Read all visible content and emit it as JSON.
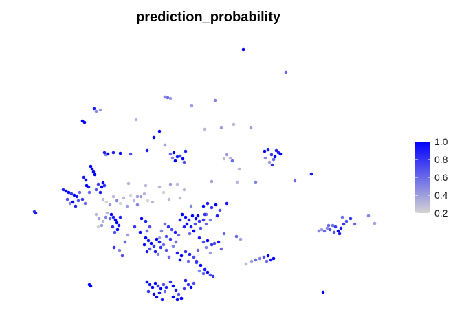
{
  "chart_data": {
    "type": "scatter",
    "title": "prediction_probability",
    "xlabel": "",
    "ylabel": "",
    "axes_visible": false,
    "grid": false,
    "legend_position": "right",
    "color_scale": {
      "low": "#d3d3d3",
      "high": "#0000ff",
      "limits": [
        0.2,
        1.0
      ],
      "breaks": [
        0.2,
        0.4,
        0.6,
        0.8,
        1.0
      ],
      "break_labels": [
        "0.2",
        "0.4",
        "0.6",
        "0.8",
        "1.0"
      ]
    },
    "clusters": [
      {
        "x": [
          50,
          52
        ],
        "y": [
          308,
          310
        ],
        "v": [
          0.8,
          0.9
        ]
      },
      {
        "x": [
          354
        ],
        "y": [
          72
        ],
        "v": [
          1.0
        ]
      },
      {
        "x": [
          416
        ],
        "y": [
          105
        ],
        "v": [
          0.6
        ]
      },
      {
        "x": [
          240,
          244,
          248
        ],
        "y": [
          141,
          142,
          143
        ],
        "v": [
          0.5,
          0.6,
          0.4
        ]
      },
      {
        "x": [
          137,
          140,
          146,
          120,
          123
        ],
        "y": [
          158,
          162,
          160,
          176,
          178
        ],
        "v": [
          0.9,
          0.5,
          0.4,
          1.0,
          1.0
        ]
      },
      {
        "x": [
          279,
          313,
          198,
          298,
          322,
          340,
          365
        ],
        "y": [
          154,
          146,
          174,
          188,
          186,
          181,
          186
        ],
        "v": [
          0.4,
          0.5,
          0.3,
          0.3,
          0.4,
          0.3,
          0.4
        ]
      },
      {
        "x": [
          232,
          224,
          240,
          214
        ],
        "y": [
          191,
          200,
          211,
          219
        ],
        "v": [
          1.0,
          1.0,
          0.4,
          0.9
        ]
      },
      {
        "x": [
          152,
          154,
          157,
          165,
          175,
          190
        ],
        "y": [
          222,
          225,
          224,
          222,
          223,
          224
        ],
        "v": [
          0.9,
          0.5,
          1.0,
          0.9,
          1.0,
          0.7
        ]
      },
      {
        "x": [
          248,
          253,
          258,
          262,
          266,
          268,
          251,
          255,
          270
        ],
        "y": [
          224,
          222,
          228,
          227,
          231,
          236,
          230,
          234,
          220
        ],
        "v": [
          0.6,
          1.0,
          0.9,
          0.8,
          1.0,
          0.7,
          0.5,
          1.0,
          0.9
        ]
      },
      {
        "x": [
          330,
          335,
          338,
          326,
          348,
          345,
          308
        ],
        "y": [
          225,
          230,
          234,
          231,
          246,
          265,
          264
        ],
        "v": [
          0.4,
          0.3,
          0.6,
          0.3,
          0.3,
          0.3,
          0.4
        ]
      },
      {
        "x": [
          385,
          390,
          395,
          400,
          405,
          408,
          398,
          392,
          386,
          402,
          396
        ],
        "y": [
          220,
          218,
          225,
          228,
          222,
          224,
          232,
          236,
          230,
          219,
          240
        ],
        "v": [
          1.0,
          0.9,
          0.8,
          1.0,
          0.9,
          1.0,
          0.6,
          0.4,
          0.5,
          0.9,
          0.8
        ]
      },
      {
        "x": [
          453,
          429,
          372
        ],
        "y": [
          253,
          263,
          265
        ],
        "v": [
          0.9,
          0.6,
          0.5
        ]
      },
      {
        "x": [
          132,
          134,
          136,
          138,
          126,
          129,
          143,
          148,
          122,
          125,
          140,
          146,
          150,
          152,
          130
        ],
        "y": [
          242,
          246,
          250,
          254,
          270,
          272,
          268,
          272,
          258,
          262,
          276,
          280,
          266,
          270,
          280
        ],
        "v": [
          1.0,
          1.0,
          1.0,
          1.0,
          1.0,
          0.9,
          0.8,
          1.0,
          0.9,
          1.0,
          0.7,
          0.9,
          1.0,
          0.8,
          0.6
        ]
      },
      {
        "x": [
          92,
          96,
          100,
          104,
          108,
          112,
          98,
          106,
          116,
          120,
          102,
          110,
          114,
          124
        ],
        "y": [
          276,
          278,
          280,
          282,
          284,
          286,
          290,
          294,
          280,
          290,
          296,
          300,
          292,
          296
        ],
        "v": [
          0.9,
          1.0,
          1.0,
          0.8,
          1.0,
          0.9,
          0.7,
          1.0,
          0.6,
          0.8,
          0.5,
          0.9,
          0.7,
          0.6
        ]
      },
      {
        "x": [
          150,
          155,
          160,
          165,
          170,
          175,
          180,
          185,
          190,
          195,
          200,
          205,
          210,
          215
        ],
        "y": [
          290,
          294,
          298,
          286,
          292,
          296,
          288,
          300,
          284,
          292,
          298,
          286,
          282,
          292
        ],
        "v": [
          0.3,
          0.2,
          0.4,
          0.3,
          0.5,
          0.2,
          0.3,
          0.4,
          0.2,
          0.3,
          0.5,
          0.4,
          0.3,
          0.2
        ]
      },
      {
        "x": [
          187,
          212,
          232,
          248,
          258,
          262,
          238,
          222,
          200,
          268,
          278,
          246
        ],
        "y": [
          267,
          270,
          272,
          268,
          268,
          288,
          280,
          294,
          286,
          276,
          300,
          290
        ],
        "v": [
          0.3,
          0.3,
          0.3,
          0.4,
          0.3,
          0.3,
          0.2,
          0.3,
          0.4,
          0.3,
          0.5,
          0.3
        ]
      },
      {
        "x": [
          162,
          165,
          168,
          170,
          173,
          164,
          171,
          167,
          160,
          175
        ],
        "y": [
          312,
          316,
          320,
          324,
          328,
          330,
          334,
          338,
          318,
          316
        ],
        "v": [
          1.0,
          0.9,
          1.0,
          1.0,
          0.9,
          0.8,
          1.0,
          0.7,
          0.6,
          0.9
        ]
      },
      {
        "x": [
          140,
          144,
          150,
          154,
          148,
          156,
          143
        ],
        "y": [
          312,
          318,
          322,
          316,
          328,
          310,
          330
        ],
        "v": [
          0.3,
          0.4,
          0.3,
          0.5,
          0.4,
          0.3,
          0.2
        ]
      },
      {
        "x": [
          265,
          270,
          275,
          280,
          285,
          290,
          272,
          278,
          284,
          288,
          296,
          300,
          268,
          282,
          292,
          262,
          276,
          298
        ],
        "y": [
          312,
          316,
          320,
          314,
          318,
          322,
          326,
          330,
          326,
          314,
          320,
          326,
          330,
          336,
          332,
          320,
          340,
          312
        ],
        "v": [
          1.0,
          1.0,
          0.9,
          1.0,
          1.0,
          0.8,
          1.0,
          0.9,
          0.7,
          1.0,
          0.8,
          0.6,
          0.9,
          1.0,
          0.7,
          0.9,
          0.6,
          0.8
        ]
      },
      {
        "x": [
          240,
          245,
          250,
          255,
          260,
          235,
          242,
          248,
          256,
          232,
          252
        ],
        "y": [
          326,
          330,
          334,
          338,
          342,
          336,
          344,
          348,
          352,
          346,
          358
        ],
        "v": [
          0.6,
          0.8,
          0.7,
          0.9,
          0.6,
          0.5,
          0.7,
          0.8,
          0.6,
          0.4,
          0.5
        ]
      },
      {
        "x": [
          212,
          216,
          220,
          224,
          228,
          232,
          218,
          226,
          234,
          210,
          238,
          242,
          214,
          230,
          246
        ],
        "y": [
          346,
          350,
          354,
          358,
          348,
          352,
          362,
          366,
          360,
          356,
          356,
          364,
          366,
          370,
          374
        ],
        "v": [
          1.0,
          0.9,
          1.0,
          0.8,
          1.0,
          0.9,
          0.7,
          0.9,
          0.8,
          1.0,
          0.6,
          0.7,
          0.9,
          0.5,
          0.6
        ]
      },
      {
        "x": [
          206,
          212,
          218,
          196,
          204,
          214
        ],
        "y": [
          318,
          322,
          330,
          330,
          338,
          336
        ],
        "v": [
          1.0,
          0.9,
          0.7,
          0.8,
          1.0,
          0.6
        ]
      },
      {
        "x": [
          296,
          302,
          308,
          314,
          320,
          300,
          316,
          306,
          330,
          326
        ],
        "y": [
          300,
          296,
          302,
          298,
          306,
          312,
          314,
          320,
          296,
          340
        ],
        "v": [
          1.0,
          0.9,
          0.8,
          1.0,
          0.7,
          0.6,
          0.9,
          0.5,
          0.9,
          0.6
        ]
      },
      {
        "x": [
          290,
          296,
          302,
          308,
          288,
          300,
          312,
          318,
          322,
          306
        ],
        "y": [
          346,
          352,
          350,
          356,
          364,
          360,
          354,
          352,
          362,
          368
        ],
        "v": [
          0.9,
          0.7,
          1.0,
          0.8,
          0.6,
          0.5,
          0.7,
          0.9,
          0.6,
          0.4
        ]
      },
      {
        "x": [
          258,
          264,
          270,
          276,
          282,
          262,
          274,
          286
        ],
        "y": [
          368,
          372,
          366,
          370,
          374,
          378,
          380,
          382
        ],
        "v": [
          0.9,
          1.0,
          0.8,
          0.9,
          0.7,
          1.0,
          0.6,
          0.7
        ]
      },
      {
        "x": [
          286,
          292,
          298,
          302,
          306,
          296,
          310,
          290
        ],
        "y": [
          380,
          386,
          392,
          396,
          400,
          398,
          402,
          394
        ],
        "v": [
          0.8,
          1.0,
          0.9,
          1.0,
          0.7,
          0.6,
          0.8,
          0.5
        ]
      },
      {
        "x": [
          344,
          350,
          174,
          178,
          166,
          186,
          182
        ],
        "y": [
          344,
          348,
          364,
          372,
          360,
          342,
          352
        ],
        "v": [
          0.6,
          0.4,
          0.5,
          0.7,
          0.8,
          0.4,
          0.6
        ]
      },
      {
        "x": [
          372,
          378,
          384,
          390,
          394,
          398,
          388,
          366,
          358
        ],
        "y": [
          378,
          376,
          374,
          372,
          378,
          376,
          380,
          380,
          384
        ],
        "v": [
          0.6,
          0.5,
          0.7,
          1.0,
          0.9,
          1.0,
          0.6,
          0.4,
          0.3
        ]
      },
      {
        "x": [
          464,
          468,
          472,
          476,
          480,
          484,
          488,
          492,
          496,
          500,
          486,
          494,
          478,
          504,
          510,
          516,
          536,
          545,
          498
        ],
        "y": [
          336,
          334,
          336,
          332,
          334,
          328,
          330,
          336,
          332,
          326,
          338,
          340,
          328,
          322,
          318,
          326,
          314,
          325,
          316
        ],
        "v": [
          0.5,
          0.4,
          0.6,
          0.5,
          0.7,
          0.6,
          0.8,
          1.0,
          0.9,
          0.8,
          0.7,
          0.9,
          0.6,
          0.7,
          0.8,
          0.6,
          0.5,
          0.4,
          0.6
        ]
      },
      {
        "x": [
          214,
          218,
          222,
          226,
          230,
          234,
          238,
          242,
          216,
          224,
          232,
          240,
          248,
          252,
          256,
          260,
          264,
          268,
          228,
          236
        ],
        "y": [
          410,
          414,
          418,
          412,
          416,
          420,
          414,
          418,
          424,
          428,
          426,
          424,
          410,
          416,
          422,
          428,
          434,
          420,
          432,
          436
        ],
        "v": [
          1.0,
          0.9,
          1.0,
          1.0,
          0.8,
          1.0,
          0.7,
          0.9,
          0.8,
          1.0,
          0.9,
          0.6,
          0.8,
          1.0,
          0.9,
          0.7,
          1.0,
          0.8,
          1.0,
          0.9
        ]
      },
      {
        "x": [
          270,
          274,
          278,
          282,
          252,
          258,
          264
        ],
        "y": [
          408,
          414,
          418,
          412,
          432,
          436,
          434
        ],
        "v": [
          0.9,
          0.8,
          1.0,
          0.7,
          1.0,
          1.0,
          0.9
        ]
      },
      {
        "x": [
          130,
          132,
          470
        ],
        "y": [
          414,
          416,
          425
        ],
        "v": [
          1.0,
          1.0,
          1.0
        ]
      }
    ]
  }
}
